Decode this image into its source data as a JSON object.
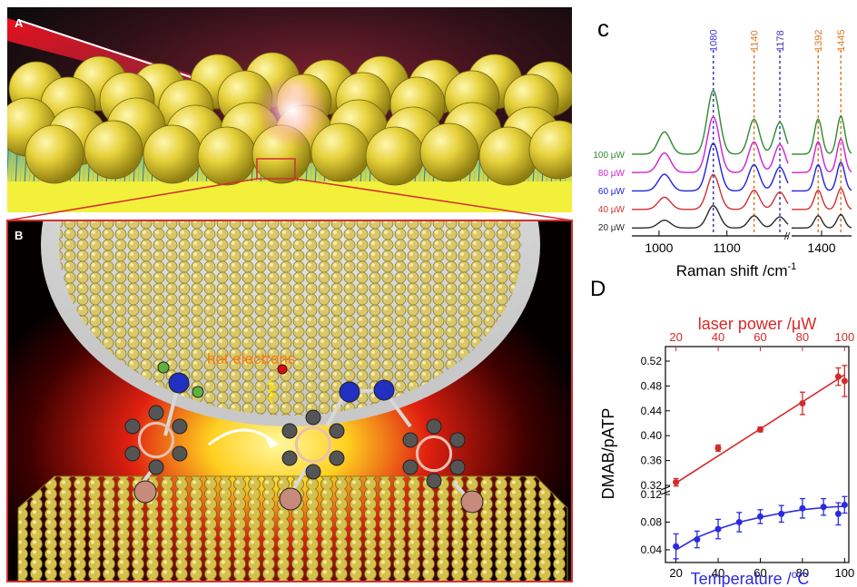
{
  "panels": {
    "A": {
      "label": "A"
    },
    "B": {
      "label": "B",
      "annotation": "hot electrons"
    },
    "c": {
      "label": "c"
    },
    "D": {
      "label": "D"
    }
  },
  "chart_data": [
    {
      "type": "line",
      "panel": "c",
      "xlabel": "Raman shift /cm",
      "xlabel_superscript": "-1",
      "xticks": [
        "1000",
        "1100",
        "1400"
      ],
      "axis_break_marker": "//",
      "x_segments": [
        [
          960,
          1190
        ],
        [
          1330,
          1470
        ]
      ],
      "peaks": [
        {
          "label": "1080",
          "x": 1080,
          "color": "#3a35c8"
        },
        {
          "label": "1140",
          "x": 1140,
          "color": "#e07820"
        },
        {
          "label": "1178",
          "x": 1178,
          "color": "#3a35c8"
        },
        {
          "label": "1392",
          "x": 1392,
          "color": "#e07820"
        },
        {
          "label": "1445",
          "x": 1445,
          "color": "#e07820"
        }
      ],
      "series": [
        {
          "name": "20 μW",
          "color": "#2a2a2a",
          "scale": 0.35
        },
        {
          "name": "40 μW",
          "color": "#d03030",
          "scale": 0.55
        },
        {
          "name": "60 μW",
          "color": "#2020e0",
          "scale": 0.75
        },
        {
          "name": "80 μW",
          "color": "#d020d0",
          "scale": 0.88
        },
        {
          "name": "100 μW",
          "color": "#2e8a2e",
          "scale": 1.0
        }
      ]
    },
    {
      "type": "scatter",
      "panel": "D",
      "ylabel": "DMAB/pATP",
      "x_bottom_label": "Temperature /",
      "x_bottom_unit_sup": "o",
      "x_bottom_unit": "C",
      "x_top_label": "laser power /μW",
      "x_ticks": [
        "20",
        "40",
        "60",
        "80",
        "100"
      ],
      "xlim": [
        15,
        102
      ],
      "y_upper_ticks": [
        "0.32",
        "0.36",
        "0.40",
        "0.44",
        "0.48",
        "0.52"
      ],
      "y_lower_ticks": [
        "0.04",
        "0.08",
        "0.12"
      ],
      "series": [
        {
          "name": "laser power",
          "color": "#d42a2a",
          "x": [
            20,
            40,
            60,
            80,
            97,
            100
          ],
          "y": [
            0.325,
            0.38,
            0.41,
            0.452,
            0.495,
            0.488
          ],
          "err": [
            0.006,
            0.005,
            0.004,
            0.018,
            0.014,
            0.025
          ],
          "fit": [
            [
              20,
              0.324
            ],
            [
              100,
              0.498
            ]
          ]
        },
        {
          "name": "temperature",
          "color": "#2a2ae0",
          "x": [
            20,
            30,
            40,
            50,
            60,
            70,
            80,
            90,
            97,
            100
          ],
          "y": [
            0.045,
            0.055,
            0.07,
            0.08,
            0.088,
            0.092,
            0.1,
            0.102,
            0.092,
            0.105
          ],
          "err": [
            0.018,
            0.012,
            0.014,
            0.014,
            0.01,
            0.012,
            0.014,
            0.012,
            0.016,
            0.012
          ],
          "fit": [
            [
              20,
              0.04
            ],
            [
              30,
              0.058
            ],
            [
              40,
              0.07
            ],
            [
              50,
              0.08
            ],
            [
              60,
              0.087
            ],
            [
              70,
              0.093
            ],
            [
              80,
              0.098
            ],
            [
              90,
              0.101
            ],
            [
              100,
              0.103
            ]
          ]
        }
      ]
    }
  ]
}
